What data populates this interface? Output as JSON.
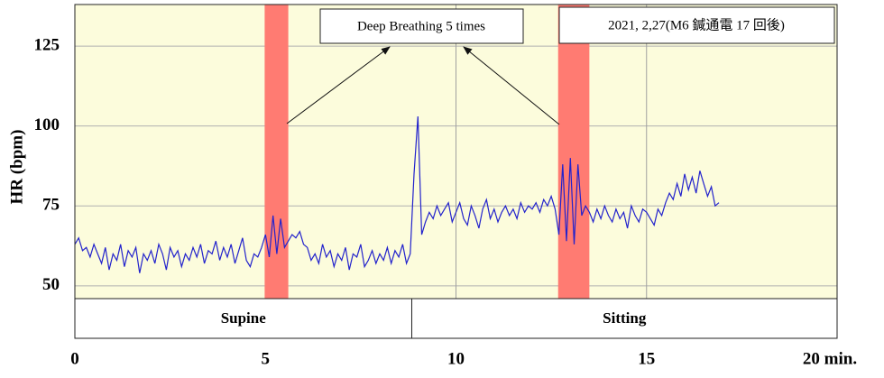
{
  "chart_data": {
    "type": "line",
    "ylabel": "HR (bpm)",
    "xlim": [
      0,
      20
    ],
    "ylim": [
      46,
      138
    ],
    "xticks": [
      0,
      5,
      10,
      15,
      {
        "value": 20,
        "label": "20 min."
      }
    ],
    "yticks": [
      50,
      75,
      100,
      125
    ],
    "grid": true,
    "background": "#fcfcdc",
    "x": [
      0,
      0.1,
      0.2,
      0.3,
      0.4,
      0.5,
      0.6,
      0.7,
      0.8,
      0.9,
      1,
      1.1,
      1.2,
      1.3,
      1.4,
      1.5,
      1.6,
      1.7,
      1.8,
      1.9,
      2,
      2.1,
      2.2,
      2.3,
      2.4,
      2.5,
      2.6,
      2.7,
      2.8,
      2.9,
      3,
      3.1,
      3.2,
      3.3,
      3.4,
      3.5,
      3.6,
      3.7,
      3.8,
      3.9,
      4,
      4.1,
      4.2,
      4.3,
      4.4,
      4.5,
      4.6,
      4.7,
      4.8,
      4.9,
      5,
      5.1,
      5.2,
      5.3,
      5.4,
      5.5,
      5.6,
      5.7,
      5.8,
      5.9,
      6,
      6.1,
      6.2,
      6.3,
      6.4,
      6.5,
      6.6,
      6.7,
      6.8,
      6.9,
      7,
      7.1,
      7.2,
      7.3,
      7.4,
      7.5,
      7.6,
      7.7,
      7.8,
      7.9,
      8,
      8.1,
      8.2,
      8.3,
      8.4,
      8.5,
      8.6,
      8.7,
      8.8,
      8.9,
      9,
      9.1,
      9.2,
      9.3,
      9.4,
      9.5,
      9.6,
      9.7,
      9.8,
      9.9,
      10,
      10.1,
      10.2,
      10.3,
      10.4,
      10.5,
      10.6,
      10.7,
      10.8,
      10.9,
      11,
      11.1,
      11.2,
      11.3,
      11.4,
      11.5,
      11.6,
      11.7,
      11.8,
      11.9,
      12,
      12.1,
      12.2,
      12.3,
      12.4,
      12.5,
      12.6,
      12.7,
      12.8,
      12.9,
      13,
      13.1,
      13.2,
      13.3,
      13.4,
      13.5,
      13.6,
      13.7,
      13.8,
      13.9,
      14,
      14.1,
      14.2,
      14.3,
      14.4,
      14.5,
      14.6,
      14.7,
      14.8,
      14.9,
      15,
      15.1,
      15.2,
      15.3,
      15.4,
      15.5,
      15.6,
      15.7,
      15.8,
      15.9,
      16,
      16.1,
      16.2,
      16.3,
      16.4,
      16.5,
      16.6,
      16.7,
      16.8,
      16.9
    ],
    "series": [
      {
        "color": "#2222cc",
        "values": [
          63,
          65,
          61,
          62,
          59,
          63,
          60,
          57,
          62,
          55,
          60,
          58,
          63,
          56,
          61,
          59,
          62,
          54,
          60,
          58,
          61,
          57,
          63,
          60,
          55,
          62,
          59,
          61,
          56,
          60,
          58,
          62,
          59,
          63,
          57,
          61,
          60,
          64,
          58,
          62,
          59,
          63,
          57,
          61,
          65,
          58,
          56,
          60,
          59,
          62,
          66,
          59,
          72,
          60,
          71,
          62,
          64,
          66,
          65,
          67,
          63,
          62,
          58,
          60,
          57,
          63,
          59,
          61,
          56,
          60,
          58,
          62,
          55,
          60,
          59,
          63,
          56,
          58,
          61,
          57,
          60,
          58,
          62,
          57,
          61,
          59,
          63,
          57,
          60,
          85,
          103,
          66,
          70,
          73,
          71,
          75,
          72,
          74,
          76,
          70,
          73,
          76,
          71,
          69,
          75,
          72,
          68,
          74,
          77,
          71,
          74,
          70,
          73,
          75,
          72,
          74,
          71,
          76,
          73,
          75,
          74,
          76,
          73,
          77,
          75,
          78,
          74,
          66,
          88,
          64,
          90,
          63,
          88,
          72,
          75,
          73,
          70,
          74,
          71,
          75,
          72,
          70,
          74,
          71,
          73,
          68,
          75,
          72,
          70,
          74,
          73,
          71,
          69,
          74,
          72,
          76,
          79,
          77,
          82,
          78,
          85,
          80,
          84,
          79,
          86,
          82,
          78,
          81,
          75,
          76
        ]
      }
    ],
    "bands": [
      {
        "from": 4.98,
        "to": 5.6
      },
      {
        "from": 12.68,
        "to": 13.5
      }
    ],
    "band_color": "#ff7b72",
    "phases": [
      {
        "label": "Supine",
        "from": 0,
        "to": 8.84
      },
      {
        "label": "Sitting",
        "from": 8.84,
        "to": 20
      }
    ],
    "annotations": [
      "Deep Breathing 5 times",
      "2021, 2,27(M6 鍼通電 17 回後)"
    ]
  }
}
